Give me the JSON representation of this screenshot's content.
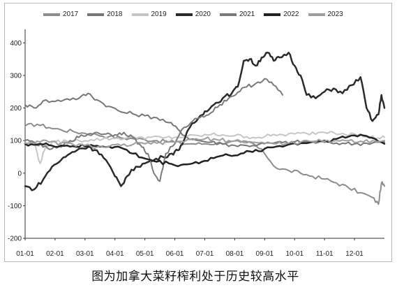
{
  "chart_data": {
    "type": "line",
    "title": "",
    "xlabel": "",
    "ylabel": "",
    "x_ticks": [
      "01-01",
      "02-01",
      "03-01",
      "04-01",
      "05-01",
      "06-01",
      "07-01",
      "08-01",
      "09-01",
      "10-01",
      "11-01",
      "12-01"
    ],
    "y_ticks": [
      "-200",
      "-100",
      "0",
      "100",
      "200",
      "300",
      "400"
    ],
    "ylim": [
      -200,
      420
    ],
    "xlim": [
      0,
      12
    ],
    "grid": false,
    "legend_position": "top",
    "series": [
      {
        "name": "2017",
        "color": "#8c8c8c",
        "width": 2,
        "points": [
          [
            0,
            145
          ],
          [
            0.4,
            150
          ],
          [
            0.8,
            140
          ],
          [
            1.2,
            133
          ],
          [
            1.6,
            128
          ],
          [
            2.0,
            122
          ],
          [
            2.4,
            118
          ],
          [
            2.8,
            112
          ],
          [
            3.2,
            108
          ],
          [
            3.6,
            106
          ],
          [
            4.0,
            103
          ],
          [
            4.4,
            100
          ],
          [
            4.8,
            96
          ],
          [
            5.2,
            92
          ],
          [
            5.6,
            90
          ],
          [
            6.0,
            90
          ],
          [
            6.4,
            92
          ],
          [
            6.8,
            95
          ],
          [
            7.2,
            95
          ],
          [
            7.6,
            92
          ],
          [
            8.0,
            60
          ],
          [
            8.4,
            15
          ],
          [
            8.8,
            8
          ],
          [
            9.2,
            0
          ],
          [
            9.6,
            -10
          ],
          [
            10.0,
            -18
          ],
          [
            10.4,
            -30
          ],
          [
            10.8,
            -45
          ],
          [
            11.2,
            -60
          ],
          [
            11.6,
            -75
          ],
          [
            11.8,
            -95
          ],
          [
            11.9,
            -30
          ],
          [
            12.0,
            -40
          ]
        ]
      },
      {
        "name": "2018",
        "color": "#767676",
        "width": 2,
        "points": [
          [
            0,
            210
          ],
          [
            0.3,
            200
          ],
          [
            0.6,
            222
          ],
          [
            1.0,
            220
          ],
          [
            1.4,
            228
          ],
          [
            1.8,
            230
          ],
          [
            2.1,
            245
          ],
          [
            2.4,
            225
          ],
          [
            2.8,
            205
          ],
          [
            3.2,
            188
          ],
          [
            3.6,
            182
          ],
          [
            4.0,
            176
          ],
          [
            4.4,
            170
          ],
          [
            4.8,
            155
          ],
          [
            5.1,
            135
          ],
          [
            5.4,
            110
          ],
          [
            5.8,
            100
          ],
          [
            6.2,
            95
          ],
          [
            6.6,
            90
          ],
          [
            7.0,
            85
          ],
          [
            7.4,
            85
          ],
          [
            7.8,
            88
          ],
          [
            8.2,
            92
          ],
          [
            8.6,
            94
          ],
          [
            9.0,
            96
          ],
          [
            9.4,
            96
          ],
          [
            9.8,
            95
          ],
          [
            10.2,
            93
          ],
          [
            10.6,
            92
          ],
          [
            11.0,
            90
          ],
          [
            11.4,
            92
          ],
          [
            11.8,
            95
          ],
          [
            12.0,
            95
          ]
        ]
      },
      {
        "name": "2019",
        "color": "#c6c6c6",
        "width": 2,
        "points": [
          [
            0,
            90
          ],
          [
            0.3,
            95
          ],
          [
            0.5,
            30
          ],
          [
            0.7,
            85
          ],
          [
            1.0,
            95
          ],
          [
            1.4,
            98
          ],
          [
            1.8,
            100
          ],
          [
            2.2,
            103
          ],
          [
            2.6,
            105
          ],
          [
            3.0,
            107
          ],
          [
            3.4,
            108
          ],
          [
            3.8,
            110
          ],
          [
            4.2,
            110
          ],
          [
            4.6,
            108
          ],
          [
            5.0,
            110
          ],
          [
            5.4,
            112
          ],
          [
            5.8,
            115
          ],
          [
            6.2,
            118
          ],
          [
            6.6,
            118
          ],
          [
            7.0,
            115
          ],
          [
            7.4,
            112
          ],
          [
            7.8,
            110
          ],
          [
            8.2,
            115
          ],
          [
            8.6,
            118
          ],
          [
            9.0,
            120
          ],
          [
            9.4,
            122
          ],
          [
            9.8,
            125
          ],
          [
            10.2,
            128
          ],
          [
            10.6,
            122
          ],
          [
            11.0,
            120
          ],
          [
            11.4,
            112
          ],
          [
            11.8,
            108
          ],
          [
            12.0,
            110
          ]
        ]
      },
      {
        "name": "2020",
        "color": "#2b2b2b",
        "width": 2.5,
        "points": [
          [
            0,
            -40
          ],
          [
            0.3,
            -50
          ],
          [
            0.6,
            -20
          ],
          [
            0.9,
            20
          ],
          [
            1.2,
            40
          ],
          [
            1.5,
            60
          ],
          [
            1.8,
            75
          ],
          [
            2.1,
            80
          ],
          [
            2.4,
            70
          ],
          [
            2.7,
            40
          ],
          [
            3.0,
            -10
          ],
          [
            3.2,
            -40
          ],
          [
            3.4,
            -10
          ],
          [
            3.7,
            20
          ],
          [
            4.0,
            30
          ],
          [
            4.3,
            40
          ],
          [
            4.6,
            50
          ],
          [
            4.9,
            60
          ],
          [
            5.1,
            70
          ],
          [
            5.3,
            100
          ],
          [
            5.5,
            140
          ],
          [
            5.8,
            170
          ],
          [
            6.0,
            190
          ],
          [
            6.3,
            210
          ],
          [
            6.6,
            230
          ],
          [
            6.9,
            245
          ],
          [
            7.1,
            265
          ],
          [
            7.3,
            345
          ],
          [
            7.5,
            350
          ],
          [
            7.7,
            330
          ],
          [
            7.9,
            355
          ],
          [
            8.1,
            370
          ],
          [
            8.3,
            345
          ],
          [
            8.5,
            355
          ],
          [
            8.8,
            370
          ],
          [
            9.0,
            330
          ],
          [
            9.2,
            300
          ],
          [
            9.4,
            240
          ],
          [
            9.7,
            230
          ],
          [
            10.0,
            250
          ],
          [
            10.3,
            260
          ],
          [
            10.6,
            245
          ],
          [
            10.9,
            270
          ],
          [
            11.2,
            295
          ],
          [
            11.4,
            200
          ],
          [
            11.6,
            160
          ],
          [
            11.8,
            180
          ],
          [
            11.9,
            240
          ],
          [
            12.0,
            200
          ]
        ]
      },
      {
        "name": "2021",
        "color": "#7a7a7a",
        "width": 2,
        "points": [
          [
            0,
            100
          ],
          [
            0.3,
            95
          ],
          [
            0.6,
            80
          ],
          [
            0.9,
            75
          ],
          [
            1.2,
            80
          ],
          [
            1.5,
            100
          ],
          [
            1.8,
            110
          ],
          [
            2.1,
            120
          ],
          [
            2.4,
            125
          ],
          [
            2.7,
            120
          ],
          [
            3.0,
            118
          ],
          [
            3.3,
            125
          ],
          [
            3.6,
            110
          ],
          [
            3.9,
            80
          ],
          [
            4.1,
            60
          ],
          [
            4.3,
            0
          ],
          [
            4.5,
            -25
          ],
          [
            4.7,
            60
          ],
          [
            5.0,
            90
          ],
          [
            5.3,
            140
          ],
          [
            5.6,
            160
          ],
          [
            5.9,
            175
          ],
          [
            6.2,
            185
          ],
          [
            6.5,
            210
          ],
          [
            6.8,
            230
          ],
          [
            7.1,
            248
          ],
          [
            7.4,
            265
          ],
          [
            7.7,
            275
          ],
          [
            8.0,
            290
          ],
          [
            8.3,
            270
          ],
          [
            8.6,
            240
          ]
        ]
      },
      {
        "name": "2022",
        "color": "#222222",
        "width": 2.5,
        "points": [
          [
            0,
            90
          ],
          [
            0.4,
            88
          ],
          [
            0.8,
            86
          ],
          [
            1.2,
            85
          ],
          [
            1.6,
            83
          ],
          [
            2.0,
            82
          ],
          [
            2.4,
            84
          ],
          [
            2.8,
            82
          ],
          [
            3.2,
            78
          ],
          [
            3.6,
            60
          ],
          [
            4.0,
            45
          ],
          [
            4.4,
            35
          ],
          [
            4.8,
            30
          ],
          [
            5.2,
            25
          ],
          [
            5.6,
            30
          ],
          [
            6.0,
            38
          ],
          [
            6.4,
            50
          ],
          [
            6.8,
            55
          ],
          [
            7.2,
            60
          ],
          [
            7.6,
            65
          ],
          [
            8.0,
            75
          ],
          [
            8.4,
            82
          ],
          [
            8.8,
            88
          ],
          [
            9.2,
            92
          ],
          [
            9.6,
            96
          ],
          [
            10.0,
            100
          ],
          [
            10.4,
            105
          ],
          [
            10.8,
            112
          ],
          [
            11.2,
            118
          ],
          [
            11.6,
            108
          ],
          [
            12.0,
            90
          ]
        ]
      },
      {
        "name": "2023",
        "color": "#9e9e9e",
        "width": 2,
        "points": [
          [
            0,
            92
          ],
          [
            0.4,
            98
          ],
          [
            0.8,
            95
          ],
          [
            1.2,
            92
          ],
          [
            1.6,
            88
          ],
          [
            2.0,
            85
          ],
          [
            2.4,
            80
          ],
          [
            2.8,
            82
          ],
          [
            3.2,
            85
          ],
          [
            3.6,
            88
          ],
          [
            4.0,
            90
          ],
          [
            4.4,
            92
          ],
          [
            4.8,
            95
          ],
          [
            5.2,
            98
          ],
          [
            5.6,
            102
          ],
          [
            6.0,
            105
          ],
          [
            6.4,
            103
          ],
          [
            6.8,
            100
          ],
          [
            7.2,
            98
          ],
          [
            7.6,
            95
          ],
          [
            8.0,
            92
          ],
          [
            8.4,
            90
          ],
          [
            8.8,
            92
          ],
          [
            9.2,
            95
          ],
          [
            9.6,
            97
          ],
          [
            10.0,
            98
          ],
          [
            10.4,
            100
          ],
          [
            10.8,
            100
          ],
          [
            11.2,
            98
          ],
          [
            11.6,
            100
          ],
          [
            12.0,
            100
          ]
        ]
      }
    ]
  },
  "caption": "图为加拿大菜籽榨利处于历史较高水平"
}
